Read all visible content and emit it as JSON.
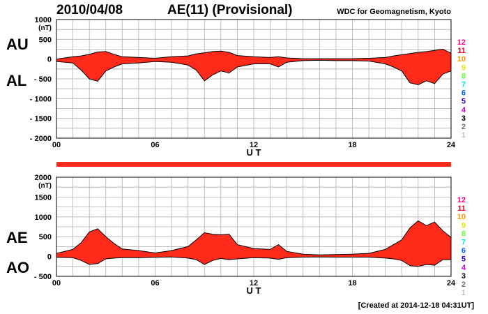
{
  "header": {
    "date": "2010/04/08",
    "title": "AE(11) (Provisional)",
    "source": "WDC for Geomagnetism, Kyoto"
  },
  "footer": {
    "created": "[Created at 2014-12-18 04:31UT]"
  },
  "colors": {
    "fill": "#ff2a1a",
    "grid": "#b0b0b0",
    "bar": "#ff2a1a"
  },
  "station_legend": [
    {
      "label": "12",
      "color": "#ff0080"
    },
    {
      "label": "11",
      "color": "#e0001a"
    },
    {
      "label": "10",
      "color": "#ff9900"
    },
    {
      "label": "9",
      "color": "#e6e600"
    },
    {
      "label": "8",
      "color": "#66ff33"
    },
    {
      "label": "7",
      "color": "#00e5e5"
    },
    {
      "label": "6",
      "color": "#0066ff"
    },
    {
      "label": "5",
      "color": "#3300cc"
    },
    {
      "label": "4",
      "color": "#cc00cc"
    },
    {
      "label": "3",
      "color": "#000000"
    },
    {
      "label": "2",
      "color": "#707070"
    },
    {
      "label": "1",
      "color": "#c0c0c0"
    }
  ],
  "chart_data": [
    {
      "type": "area",
      "panel": "AU/AL",
      "upper_label": "AU",
      "lower_label": "AL",
      "ylabel": "(nT)",
      "xlabel": "U T",
      "xlim": [
        0,
        24
      ],
      "ylim": [
        -2000,
        1000
      ],
      "x_ticks": [
        "00",
        "06",
        "12",
        "18",
        "24"
      ],
      "y_ticks": [
        {
          "v": 1000,
          "t": "1000"
        },
        {
          "v": 500,
          "t": "500"
        },
        {
          "v": 0,
          "t": "0"
        },
        {
          "v": -500,
          "t": "- 500"
        },
        {
          "v": -1000,
          "t": "- 1000"
        },
        {
          "v": -1500,
          "t": "- 1500"
        },
        {
          "v": -2000,
          "t": "- 2000"
        }
      ],
      "series": [
        {
          "name": "AU",
          "x": [
            0,
            1,
            1.5,
            2,
            2.5,
            3,
            3.5,
            4,
            5,
            6,
            7,
            8,
            8.5,
            9,
            9.5,
            10,
            10.5,
            11,
            12,
            13,
            13.5,
            14,
            15,
            16,
            17,
            18,
            19,
            20,
            20.5,
            21,
            21.5,
            22,
            22.5,
            23,
            23.5,
            24
          ],
          "y": [
            0,
            60,
            80,
            120,
            180,
            190,
            120,
            60,
            40,
            20,
            60,
            80,
            130,
            160,
            190,
            200,
            170,
            90,
            60,
            40,
            60,
            30,
            10,
            10,
            10,
            10,
            20,
            40,
            80,
            110,
            140,
            170,
            190,
            220,
            250,
            150
          ]
        },
        {
          "name": "AL",
          "x": [
            0,
            1,
            1.5,
            2,
            2.5,
            3,
            3.5,
            4,
            5,
            6,
            7,
            8,
            8.5,
            9,
            9.5,
            10,
            10.5,
            11,
            12,
            13,
            13.5,
            14,
            15,
            16,
            17,
            18,
            19,
            20,
            20.5,
            21,
            21.5,
            22,
            22.5,
            23,
            23.5,
            24
          ],
          "y": [
            -60,
            -100,
            -280,
            -500,
            -560,
            -300,
            -200,
            -120,
            -100,
            -60,
            -80,
            -150,
            -280,
            -550,
            -400,
            -300,
            -350,
            -200,
            -120,
            -120,
            -200,
            -80,
            -40,
            -30,
            -40,
            -40,
            -50,
            -120,
            -200,
            -300,
            -600,
            -650,
            -550,
            -620,
            -380,
            -300
          ]
        }
      ]
    },
    {
      "type": "area",
      "panel": "AE/AO",
      "upper_label": "AE",
      "lower_label": "AO",
      "ylabel": "(nT)",
      "xlabel": "U T",
      "xlim": [
        0,
        24
      ],
      "ylim": [
        -500,
        2000
      ],
      "x_ticks": [
        "00",
        "06",
        "12",
        "18",
        "24"
      ],
      "y_ticks": [
        {
          "v": 2000,
          "t": "2000"
        },
        {
          "v": 1500,
          "t": "1500"
        },
        {
          "v": 1000,
          "t": "1000"
        },
        {
          "v": 500,
          "t": "500"
        },
        {
          "v": 0,
          "t": "0"
        },
        {
          "v": -500,
          "t": "- 500"
        }
      ],
      "series": [
        {
          "name": "AE",
          "x": [
            0,
            1,
            1.5,
            2,
            2.5,
            3,
            3.5,
            4,
            5,
            6,
            7,
            8,
            8.5,
            9,
            9.5,
            10,
            10.5,
            11,
            12,
            13,
            13.5,
            14,
            15,
            16,
            17,
            18,
            19,
            20,
            20.5,
            21,
            21.5,
            22,
            22.5,
            23,
            23.5,
            24
          ],
          "y": [
            80,
            180,
            350,
            620,
            700,
            500,
            330,
            190,
            150,
            90,
            150,
            250,
            420,
            600,
            560,
            550,
            560,
            300,
            200,
            180,
            300,
            130,
            60,
            40,
            50,
            60,
            80,
            180,
            300,
            420,
            720,
            900,
            780,
            870,
            650,
            480
          ]
        },
        {
          "name": "AO",
          "x": [
            0,
            1,
            1.5,
            2,
            2.5,
            3,
            3.5,
            4,
            5,
            6,
            7,
            8,
            8.5,
            9,
            9.5,
            10,
            10.5,
            11,
            12,
            13,
            13.5,
            14,
            15,
            16,
            17,
            18,
            19,
            20,
            20.5,
            21,
            21.5,
            22,
            22.5,
            23,
            23.5,
            24
          ],
          "y": [
            -20,
            -30,
            -100,
            -200,
            -180,
            -60,
            -40,
            -30,
            -30,
            -20,
            -10,
            -40,
            -80,
            -200,
            -100,
            -50,
            -80,
            -60,
            -30,
            -40,
            -70,
            -30,
            -15,
            -10,
            -15,
            -15,
            -15,
            -40,
            -60,
            -100,
            -230,
            -250,
            -200,
            -220,
            -80,
            -80
          ]
        }
      ]
    }
  ]
}
